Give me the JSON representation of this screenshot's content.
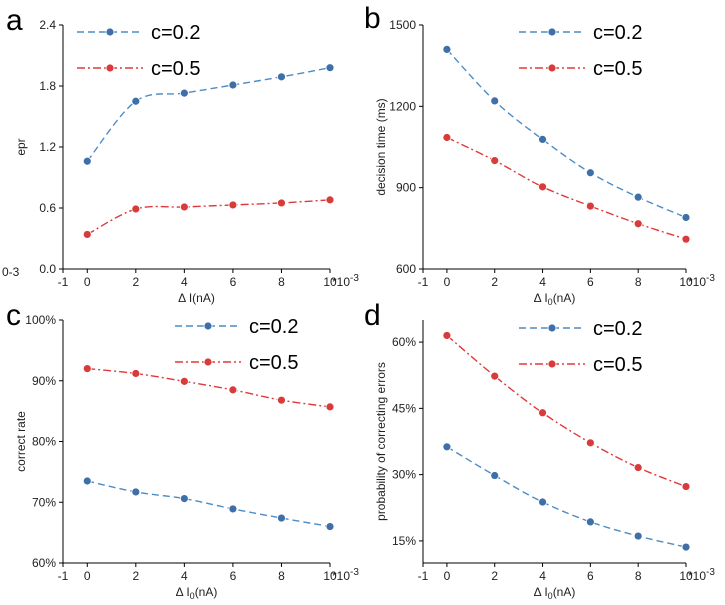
{
  "colors": {
    "c02": "#4d8cc4",
    "c05": "#e0383a",
    "c02_marker": "#3f6fa8",
    "c05_marker": "#d93a3a"
  },
  "chart_data": [
    {
      "type": "line",
      "panel": "a",
      "ylabel": "epr",
      "xlabel_main": "Δ I",
      "xlabel_sub": "",
      "xlabel_tail": "(nA)",
      "x": [
        0,
        2,
        4,
        6,
        8,
        10
      ],
      "xlim": [
        -1,
        10
      ],
      "xticks": [
        "-1",
        "0",
        "2",
        "4",
        "6",
        "8",
        "10"
      ],
      "x_multiplier": "*10-3",
      "y_offset_label": "0-3",
      "ylim": [
        0,
        2.4
      ],
      "yticks": [
        "0.0",
        "0.6",
        "1.2",
        "1.8",
        "2.4"
      ],
      "legend_position": "top-right",
      "series": [
        {
          "name": "c=0.2",
          "values": [
            1.06,
            1.65,
            1.73,
            1.81,
            1.89,
            1.98
          ]
        },
        {
          "name": "c=0.5",
          "values": [
            0.34,
            0.59,
            0.61,
            0.63,
            0.65,
            0.68
          ]
        }
      ]
    },
    {
      "type": "line",
      "panel": "b",
      "ylabel": "decision time (ms)",
      "xlabel_main": "Δ I",
      "xlabel_sub": "0",
      "xlabel_tail": "(nA)",
      "x": [
        0,
        2,
        4,
        6,
        8,
        10
      ],
      "xlim": [
        -1,
        10
      ],
      "xticks": [
        "-1",
        "0",
        "2",
        "4",
        "6",
        "8",
        "10"
      ],
      "x_multiplier": "*10-3",
      "ylim": [
        600,
        1500
      ],
      "yticks": [
        "600",
        "900",
        "1200",
        "1500"
      ],
      "legend_position": "top-right",
      "series": [
        {
          "name": "c=0.2",
          "values": [
            1410,
            1220,
            1078,
            955,
            865,
            790
          ]
        },
        {
          "name": "c=0.5",
          "values": [
            1085,
            1000,
            903,
            832,
            767,
            710
          ]
        }
      ]
    },
    {
      "type": "line",
      "panel": "c",
      "ylabel": "correct rate",
      "xlabel_main": "Δ I",
      "xlabel_sub": "0",
      "xlabel_tail": "(nA)",
      "x": [
        0,
        2,
        4,
        6,
        8,
        10
      ],
      "xlim": [
        -1,
        10
      ],
      "xticks": [
        "-1",
        "0",
        "2",
        "4",
        "6",
        "8",
        "10"
      ],
      "x_multiplier": "*10-3",
      "ylim": [
        60,
        100
      ],
      "yticks": [
        "60%",
        "70%",
        "80%",
        "90%",
        "100%"
      ],
      "legend_position": "top-right",
      "series": [
        {
          "name": "c=0.2",
          "values": [
            73.5,
            71.7,
            70.6,
            68.9,
            67.4,
            66.0
          ]
        },
        {
          "name": "c=0.5",
          "values": [
            92.0,
            91.2,
            89.9,
            88.5,
            86.8,
            85.7
          ]
        }
      ]
    },
    {
      "type": "line",
      "panel": "d",
      "ylabel": "probability of correcting errors",
      "xlabel_main": "Δ I",
      "xlabel_sub": "0",
      "xlabel_tail": "(nA)",
      "x": [
        0,
        2,
        4,
        6,
        8,
        10
      ],
      "xlim": [
        -1,
        10
      ],
      "xticks": [
        "-1",
        "0",
        "2",
        "4",
        "6",
        "8",
        "10"
      ],
      "x_multiplier": "*10-3",
      "ylim": [
        10,
        65
      ],
      "ytick_values": [
        15,
        30,
        45,
        60
      ],
      "yticks": [
        "15%",
        "30%",
        "45%",
        "60%"
      ],
      "legend_position": "top-right",
      "series": [
        {
          "name": "c=0.2",
          "values": [
            36.3,
            29.8,
            23.8,
            19.3,
            16.1,
            13.6
          ]
        },
        {
          "name": "c=0.5",
          "values": [
            61.5,
            52.3,
            44.0,
            37.2,
            31.6,
            27.3
          ]
        }
      ]
    }
  ]
}
